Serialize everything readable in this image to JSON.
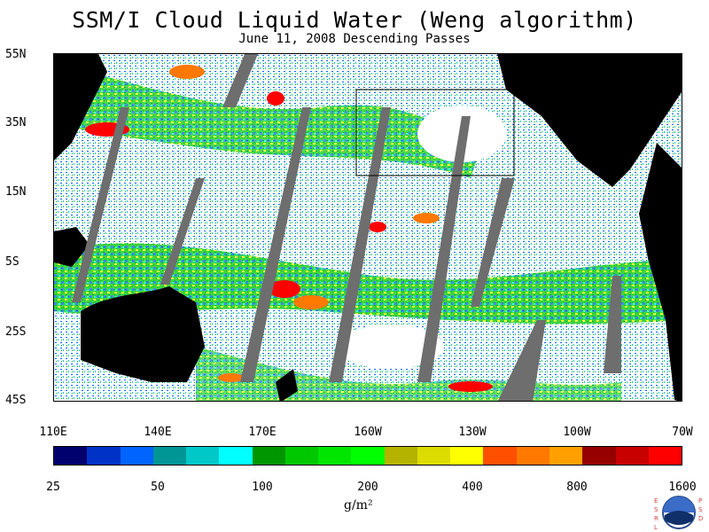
{
  "title": "SSM/I Cloud Liquid Water (Weng algorithm)",
  "subtitle": "June 11, 2008  Descending Passes",
  "lat_labels": [
    "55N",
    "35N",
    "15N",
    "5S",
    "25S",
    "45S"
  ],
  "lon_labels": [
    "110E",
    "140E",
    "170E",
    "160W",
    "130W",
    "100W",
    "70W"
  ],
  "colorbar": {
    "colors": [
      "#00006e",
      "#0032c8",
      "#0064ff",
      "#009696",
      "#00c8c8",
      "#00ffff",
      "#009600",
      "#00c800",
      "#00e600",
      "#00ff00",
      "#b4b400",
      "#dcdc00",
      "#ffff00",
      "#ff5000",
      "#ff7800",
      "#ffa000",
      "#960000",
      "#c80000",
      "#ff0000"
    ],
    "tick_labels": [
      "25",
      "50",
      "100",
      "200",
      "400",
      "800",
      "1600"
    ],
    "units": "g/m²"
  },
  "logo": {
    "letters_left": "ESRL",
    "letters_right": "PSD",
    "name": "noaa-logo"
  }
}
